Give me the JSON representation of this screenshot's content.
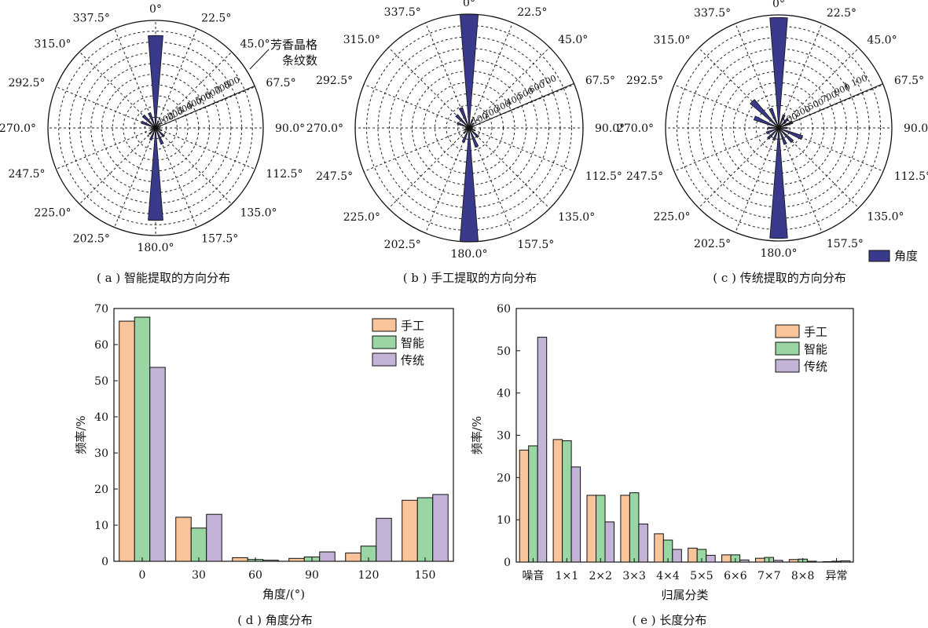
{
  "colors": {
    "rose": "#3a3a8c",
    "manual": "#f9c499",
    "smart": "#9ad6a3",
    "traditional": "#c3b3d6"
  },
  "chart_data": [
    {
      "type": "rose",
      "id": "a",
      "caption": "( a ) 智能提取的方向分布",
      "direction_labels": [
        "0°",
        "22.5°",
        "45.0°",
        "67.5°",
        "90.0°",
        "112.5°",
        "135.0°",
        "157.5°",
        "180.0°",
        "202.5°",
        "225.0°",
        "247.5°",
        "270.0°",
        "292.5°",
        "315.0°",
        "337.5°"
      ],
      "radial_ticks": [
        "100",
        "200",
        "300",
        "400",
        "500",
        "600",
        "700",
        "800"
      ],
      "radial_max": 1000,
      "radial_axis_label": [
        "芳香晶格",
        "条纹数"
      ],
      "sectors": [
        {
          "angle": 0,
          "value": 860
        },
        {
          "angle": 22.5,
          "value": 70
        },
        {
          "angle": 45,
          "value": 60
        },
        {
          "angle": 67.5,
          "value": 50
        },
        {
          "angle": 90,
          "value": 40
        },
        {
          "angle": 112.5,
          "value": 60
        },
        {
          "angle": 135,
          "value": 110
        },
        {
          "angle": 157.5,
          "value": 160
        },
        {
          "angle": 180,
          "value": 860
        },
        {
          "angle": 202.5,
          "value": 120
        },
        {
          "angle": 225,
          "value": 80
        },
        {
          "angle": 247.5,
          "value": 50
        },
        {
          "angle": 270,
          "value": 40
        },
        {
          "angle": 292.5,
          "value": 140
        },
        {
          "angle": 315,
          "value": 160
        },
        {
          "angle": 337.5,
          "value": 150
        }
      ]
    },
    {
      "type": "rose",
      "id": "b",
      "caption": "( b ) 手工提取的方向分布",
      "direction_labels": [
        "0°",
        "22.5°",
        "45.0°",
        "67.5°",
        "90.0°",
        "112.5°",
        "135.0°",
        "157.5°",
        "180.0°",
        "202.5°",
        "225.0°",
        "247.5°",
        "270.0°",
        "292.5°",
        "315.0°",
        "337.5°"
      ],
      "radial_ticks": [
        "100",
        "200",
        "300",
        "400",
        "500",
        "600",
        "700"
      ],
      "radial_max": 900,
      "sectors": [
        {
          "angle": 0,
          "value": 900
        },
        {
          "angle": 22.5,
          "value": 70
        },
        {
          "angle": 45,
          "value": 50
        },
        {
          "angle": 67.5,
          "value": 40
        },
        {
          "angle": 90,
          "value": 30
        },
        {
          "angle": 112.5,
          "value": 50
        },
        {
          "angle": 135,
          "value": 100
        },
        {
          "angle": 157.5,
          "value": 160
        },
        {
          "angle": 180,
          "value": 900
        },
        {
          "angle": 202.5,
          "value": 120
        },
        {
          "angle": 225,
          "value": 60
        },
        {
          "angle": 247.5,
          "value": 40
        },
        {
          "angle": 270,
          "value": 30
        },
        {
          "angle": 292.5,
          "value": 100
        },
        {
          "angle": 315,
          "value": 140
        },
        {
          "angle": 337.5,
          "value": 170
        }
      ]
    },
    {
      "type": "rose",
      "id": "c",
      "caption": "( c ) 传统提取的方向分布",
      "legend": "角度",
      "direction_labels": [
        "0°",
        "22.5°",
        "45.0°",
        "67.5°",
        "90.0°",
        "112.5°",
        "135.0°",
        "157.5°",
        "180.0°",
        "202.5°",
        "225.0°",
        "247.5°",
        "270.0°",
        "292.5°",
        "315.0°",
        "337.5°"
      ],
      "radial_ticks": [
        "100",
        "300",
        "500",
        "700",
        "900",
        "1 100"
      ],
      "radial_max": 1300,
      "sectors": [
        {
          "angle": 0,
          "value": 1270
        },
        {
          "angle": 22.5,
          "value": 160
        },
        {
          "angle": 45,
          "value": 140
        },
        {
          "angle": 67.5,
          "value": 170
        },
        {
          "angle": 90,
          "value": 100
        },
        {
          "angle": 112.5,
          "value": 290
        },
        {
          "angle": 135,
          "value": 220
        },
        {
          "angle": 157.5,
          "value": 200
        },
        {
          "angle": 180,
          "value": 1270
        },
        {
          "angle": 202.5,
          "value": 150
        },
        {
          "angle": 225,
          "value": 170
        },
        {
          "angle": 247.5,
          "value": 150
        },
        {
          "angle": 270,
          "value": 120
        },
        {
          "angle": 292.5,
          "value": 300
        },
        {
          "angle": 315,
          "value": 430
        },
        {
          "angle": 337.5,
          "value": 240
        }
      ]
    },
    {
      "type": "bar",
      "id": "d",
      "caption": "( d ) 角度分布",
      "xlabel": "角度/(°)",
      "ylabel": "频率/%",
      "ylim": [
        0,
        70
      ],
      "yticks": [
        "0",
        "10",
        "20",
        "30",
        "40",
        "50",
        "60",
        "70"
      ],
      "categories": [
        "0",
        "30",
        "60",
        "90",
        "120",
        "150"
      ],
      "series": [
        {
          "name": "手工",
          "values": [
            66.5,
            12.2,
            1.0,
            0.8,
            2.3,
            16.9
          ]
        },
        {
          "name": "智能",
          "values": [
            67.6,
            9.2,
            0.5,
            1.2,
            4.2,
            17.6
          ]
        },
        {
          "name": "传统",
          "values": [
            53.7,
            13.0,
            0.3,
            2.6,
            11.9,
            18.5
          ]
        }
      ]
    },
    {
      "type": "bar",
      "id": "e",
      "caption": "( e ) 长度分布",
      "xlabel": "归属分类",
      "ylabel": "频率/%",
      "ylim": [
        0,
        60
      ],
      "yticks": [
        "0",
        "10",
        "20",
        "30",
        "40",
        "50",
        "60"
      ],
      "categories": [
        "噪音",
        "1×1",
        "2×2",
        "3×3",
        "4×4",
        "5×5",
        "6×6",
        "7×7",
        "8×8",
        "异常"
      ],
      "series": [
        {
          "name": "手工",
          "values": [
            26.5,
            29.0,
            15.8,
            15.8,
            6.7,
            3.3,
            1.7,
            0.9,
            0.6,
            0.1
          ]
        },
        {
          "name": "智能",
          "values": [
            27.5,
            28.7,
            15.8,
            16.4,
            5.2,
            3.0,
            1.7,
            1.1,
            0.7,
            0.2
          ]
        },
        {
          "name": "传统",
          "values": [
            53.2,
            22.5,
            9.5,
            9.0,
            3.0,
            1.6,
            0.5,
            0.4,
            0.2,
            0.3
          ]
        }
      ]
    }
  ]
}
